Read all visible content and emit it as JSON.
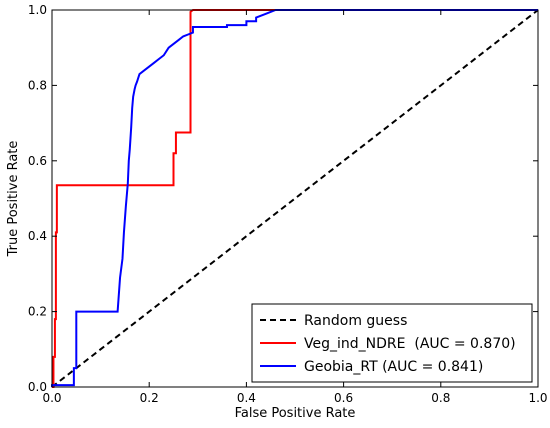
{
  "chart_data": {
    "type": "line",
    "title": "",
    "xlabel": "False Positive Rate",
    "ylabel": "True Positive Rate",
    "xlim": [
      0.0,
      1.0
    ],
    "ylim": [
      0.0,
      1.0
    ],
    "x_ticks": [
      "0.0",
      "0.2",
      "0.4",
      "0.6",
      "0.8",
      "1.0"
    ],
    "y_ticks": [
      "0.0",
      "0.2",
      "0.4",
      "0.6",
      "0.8",
      "1.0"
    ],
    "grid": false,
    "legend_position": "bottom-right",
    "series": [
      {
        "name": "Random guess",
        "color": "#000000",
        "style": "dashed",
        "x": [
          0.0,
          1.0
        ],
        "y": [
          0.0,
          1.0
        ]
      },
      {
        "name": "Veg_ind_NDRE  (AUC = 0.870)",
        "color": "#ff0000",
        "style": "solid",
        "x": [
          0.0,
          0.003,
          0.003,
          0.006,
          0.006,
          0.008,
          0.008,
          0.01,
          0.01,
          0.25,
          0.25,
          0.255,
          0.255,
          0.285,
          0.285,
          0.29,
          1.0
        ],
        "y": [
          0.0,
          0.0,
          0.08,
          0.08,
          0.18,
          0.18,
          0.41,
          0.41,
          0.535,
          0.535,
          0.62,
          0.62,
          0.675,
          0.675,
          0.995,
          1.0,
          1.0
        ]
      },
      {
        "name": "Geobia_RT (AUC = 0.841)",
        "color": "#0000ff",
        "style": "solid",
        "x": [
          0.0,
          0.0,
          0.045,
          0.045,
          0.05,
          0.05,
          0.135,
          0.14,
          0.145,
          0.148,
          0.152,
          0.156,
          0.158,
          0.16,
          0.163,
          0.165,
          0.167,
          0.17,
          0.172,
          0.175,
          0.18,
          0.19,
          0.2,
          0.21,
          0.22,
          0.23,
          0.24,
          0.25,
          0.26,
          0.27,
          0.28,
          0.29,
          0.29,
          0.36,
          0.36,
          0.4,
          0.4,
          0.42,
          0.42,
          0.44,
          0.46,
          1.0
        ],
        "y": [
          0.0,
          0.005,
          0.005,
          0.05,
          0.05,
          0.2,
          0.2,
          0.29,
          0.34,
          0.41,
          0.48,
          0.54,
          0.6,
          0.63,
          0.69,
          0.74,
          0.77,
          0.79,
          0.8,
          0.81,
          0.83,
          0.84,
          0.85,
          0.86,
          0.87,
          0.88,
          0.9,
          0.91,
          0.92,
          0.93,
          0.935,
          0.94,
          0.955,
          0.955,
          0.96,
          0.96,
          0.97,
          0.97,
          0.98,
          0.99,
          1.0,
          1.0
        ]
      }
    ]
  }
}
